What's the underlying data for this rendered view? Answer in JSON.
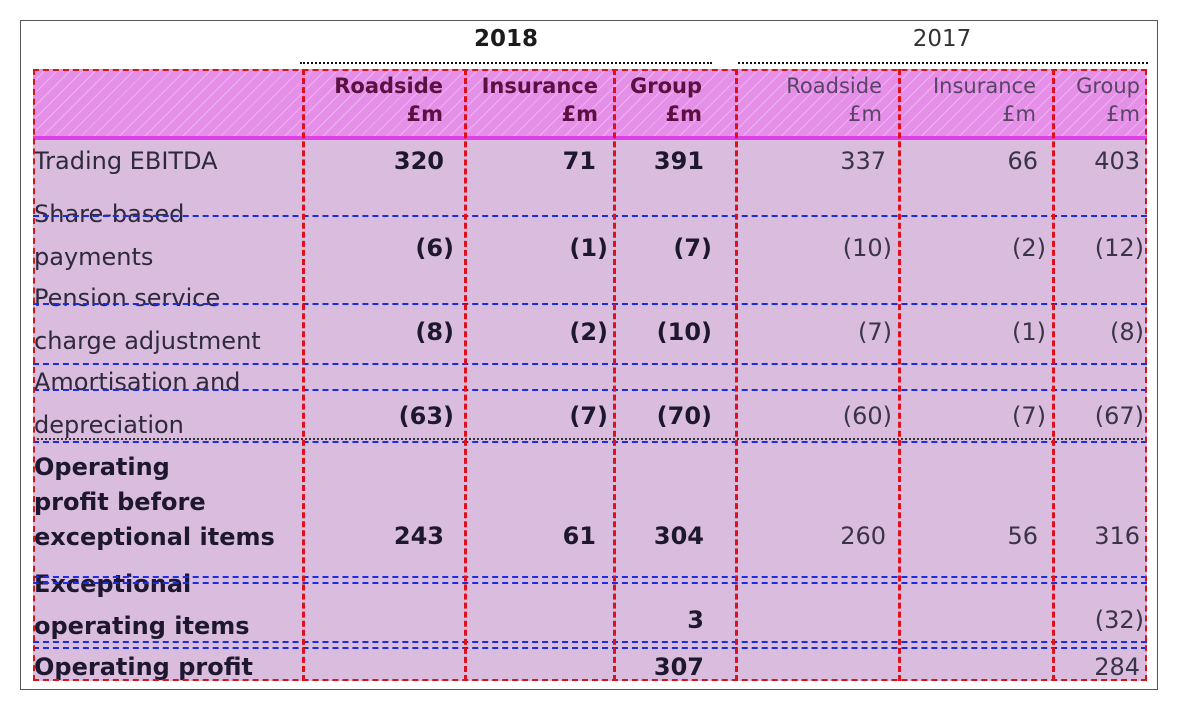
{
  "years": {
    "current": "2018",
    "prior": "2017"
  },
  "columns": [
    {
      "title": "Roadside",
      "unit": "£m"
    },
    {
      "title": "Insurance",
      "unit": "£m"
    },
    {
      "title": "Group",
      "unit": "£m"
    },
    {
      "title": "Roadside",
      "unit": "£m"
    },
    {
      "title": "Insurance",
      "unit": "£m"
    },
    {
      "title": "Group",
      "unit": "£m"
    }
  ],
  "rows": [
    {
      "label": [
        "Trading EBITDA"
      ],
      "values": [
        "320",
        "71",
        "391",
        "337",
        "66",
        "403"
      ]
    },
    {
      "label": [
        "Share-based",
        "payments"
      ],
      "values": [
        "(6)",
        "(1)",
        "(7)",
        "(10)",
        "(2)",
        "(12)"
      ]
    },
    {
      "label": [
        "Pension service",
        "charge adjustment"
      ],
      "values": [
        "(8)",
        "(2)",
        "(10)",
        "(7)",
        "(1)",
        "(8)"
      ]
    },
    {
      "label": [
        "Amortisation and",
        "depreciation"
      ],
      "values": [
        "(63)",
        "(7)",
        "(70)",
        "(60)",
        "(7)",
        "(67)"
      ]
    },
    {
      "label": [
        "Operating",
        "profit before",
        "exceptional items"
      ],
      "values": [
        "243",
        "61",
        "304",
        "260",
        "56",
        "316"
      ]
    },
    {
      "label": [
        "Exceptional",
        "operating items"
      ],
      "values": [
        "",
        "",
        "3",
        "",
        "",
        "(32)"
      ]
    },
    {
      "label": [
        "Operating profit"
      ],
      "values": [
        "",
        "",
        "307",
        "",
        "",
        "284"
      ]
    }
  ]
}
